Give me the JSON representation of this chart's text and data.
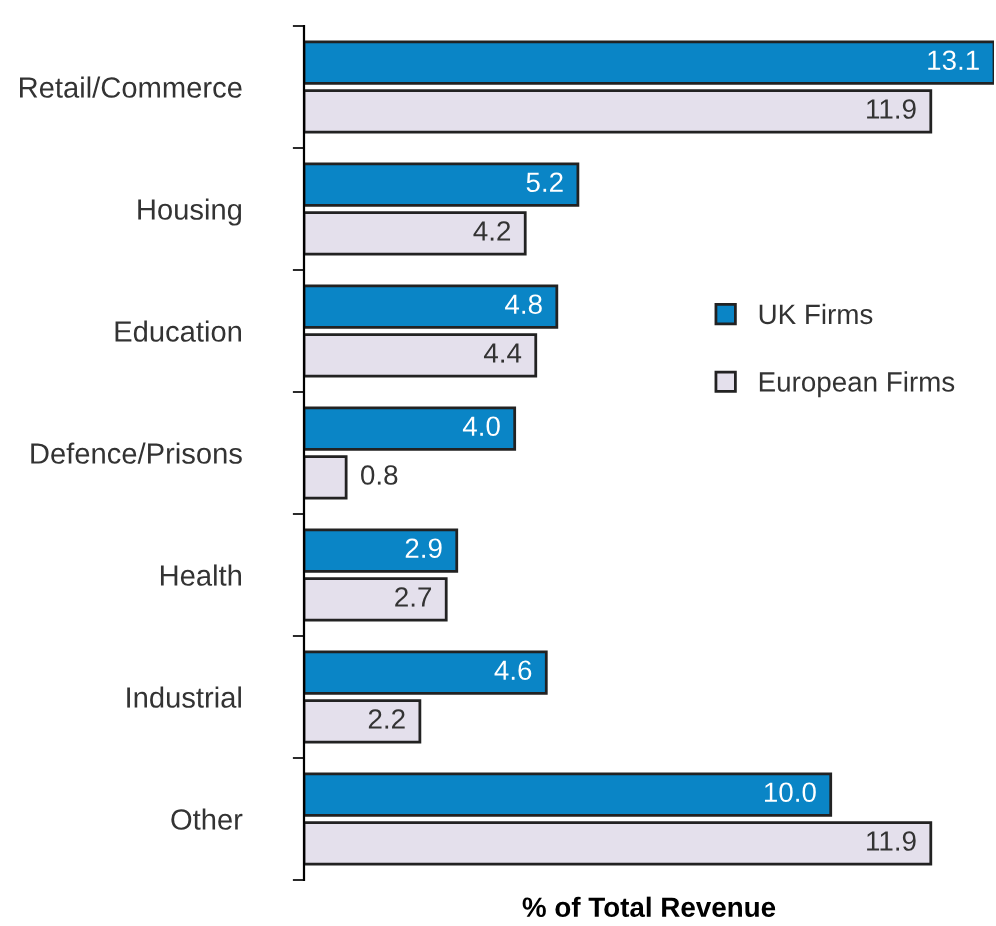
{
  "chart_data": {
    "type": "bar",
    "orientation": "horizontal",
    "xlabel": "% of Total Revenue",
    "categories": [
      "Retail/Commerce",
      "Housing",
      "Education",
      "Defence/Prisons",
      "Health",
      "Industrial",
      "Other"
    ],
    "series": [
      {
        "name": "UK Firms",
        "color": "#0a85c6",
        "values": [
          13.1,
          5.2,
          4.8,
          4.0,
          2.9,
          4.6,
          10.0
        ],
        "value_labels": [
          "13.1",
          "5.2",
          "4.8",
          "4.0",
          "2.9",
          "4.6",
          "10.0"
        ]
      },
      {
        "name": "European Firms",
        "color": "#e4e0ec",
        "values": [
          11.9,
          4.2,
          4.4,
          0.8,
          2.7,
          2.2,
          11.9
        ],
        "value_labels": [
          "11.9",
          "4.2",
          "4.4",
          "0.8",
          "2.7",
          "2.2",
          "11.9"
        ]
      }
    ],
    "legend": "right",
    "tick_labels": "y"
  }
}
